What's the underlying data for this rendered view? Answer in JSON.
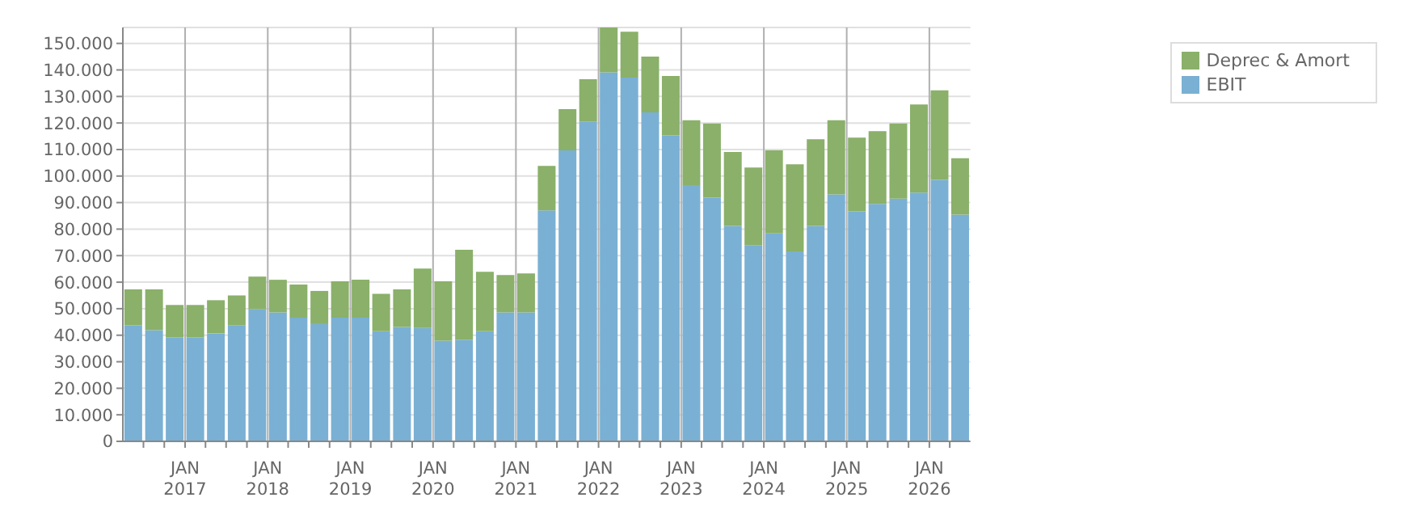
{
  "chart_data": {
    "type": "bar",
    "stacked": true,
    "x": [
      "2016-05-16",
      "2016-08-16",
      "2016-11-15",
      "2017-02-14",
      "2017-05-16",
      "2017-08-16",
      "2017-11-15",
      "2018-02-14",
      "2018-05-16",
      "2018-08-16",
      "2018-11-15",
      "2019-02-14",
      "2019-05-16",
      "2019-08-16",
      "2019-11-15",
      "2020-02-14",
      "2020-05-16",
      "2020-08-16",
      "2020-11-15",
      "2021-02-14",
      "2021-05-16",
      "2021-08-16",
      "2021-11-15",
      "2022-02-14",
      "2022-05-16",
      "2022-08-16",
      "2022-11-15",
      "2023-02-14",
      "2023-05-16",
      "2023-08-16",
      "2023-11-15",
      "2024-02-14",
      "2024-05-16",
      "2024-08-16",
      "2024-11-15",
      "2025-02-14",
      "2025-05-16",
      "2025-08-16",
      "2025-11-15",
      "2026-02-14",
      "2026-05-16"
    ],
    "series": [
      {
        "name": "EBIT",
        "color": "#7ab0d3",
        "values": [
          43700,
          41900,
          39100,
          39100,
          40700,
          43700,
          49800,
          48600,
          46600,
          44200,
          46600,
          46600,
          41500,
          43100,
          42700,
          37900,
          38300,
          41500,
          48600,
          48600,
          87100,
          109700,
          120400,
          139100,
          137100,
          124000,
          115300,
          96600,
          91900,
          81200,
          74000,
          78400,
          71600,
          81200,
          93100,
          86700,
          89500,
          91500,
          93800,
          98600,
          85500
        ]
      },
      {
        "name": "Deprec & Amort",
        "color": "#8ab06a",
        "values": [
          13600,
          15400,
          12300,
          12300,
          12500,
          11300,
          12300,
          12300,
          12500,
          12500,
          13700,
          14300,
          14100,
          14200,
          22400,
          22400,
          33900,
          22400,
          14100,
          14700,
          16700,
          15500,
          16100,
          16900,
          17300,
          21000,
          22400,
          24400,
          27900,
          27900,
          29200,
          31300,
          32800,
          32700,
          27900,
          27800,
          27400,
          28300,
          33200,
          33700,
          21200
        ]
      }
    ],
    "xlim": [
      "2016-04-01",
      "2026-07-01"
    ],
    "xticks": [
      {
        "value": "2016-07-01",
        "label": null
      },
      {
        "value": "2016-10-01",
        "label": null
      },
      {
        "value": "2017-01-01",
        "label": "JAN\n2017"
      },
      {
        "value": "2017-04-01",
        "label": null
      },
      {
        "value": "2017-07-01",
        "label": null
      },
      {
        "value": "2017-10-01",
        "label": null
      },
      {
        "value": "2018-01-01",
        "label": "JAN\n2018"
      },
      {
        "value": "2018-04-01",
        "label": null
      },
      {
        "value": "2018-07-01",
        "label": null
      },
      {
        "value": "2018-10-01",
        "label": null
      },
      {
        "value": "2019-01-01",
        "label": "JAN\n2019"
      },
      {
        "value": "2019-04-01",
        "label": null
      },
      {
        "value": "2019-07-01",
        "label": null
      },
      {
        "value": "2019-10-01",
        "label": null
      },
      {
        "value": "2020-01-01",
        "label": "JAN\n2020"
      },
      {
        "value": "2020-04-01",
        "label": null
      },
      {
        "value": "2020-07-01",
        "label": null
      },
      {
        "value": "2020-10-01",
        "label": null
      },
      {
        "value": "2021-01-01",
        "label": "JAN\n2021"
      },
      {
        "value": "2021-04-01",
        "label": null
      },
      {
        "value": "2021-07-01",
        "label": null
      },
      {
        "value": "2021-10-01",
        "label": null
      },
      {
        "value": "2022-01-01",
        "label": "JAN\n2022"
      },
      {
        "value": "2022-04-01",
        "label": null
      },
      {
        "value": "2022-07-01",
        "label": null
      },
      {
        "value": "2022-10-01",
        "label": null
      },
      {
        "value": "2023-01-01",
        "label": "JAN\n2023"
      },
      {
        "value": "2023-04-01",
        "label": null
      },
      {
        "value": "2023-07-01",
        "label": null
      },
      {
        "value": "2023-10-01",
        "label": null
      },
      {
        "value": "2024-01-01",
        "label": "JAN\n2024"
      },
      {
        "value": "2024-04-01",
        "label": null
      },
      {
        "value": "2024-07-01",
        "label": null
      },
      {
        "value": "2024-10-01",
        "label": null
      },
      {
        "value": "2025-01-01",
        "label": "JAN\n2025"
      },
      {
        "value": "2025-04-01",
        "label": null
      },
      {
        "value": "2025-07-01",
        "label": null
      },
      {
        "value": "2025-10-01",
        "label": null
      },
      {
        "value": "2026-01-01",
        "label": "JAN\n2026"
      },
      {
        "value": "2026-04-01",
        "label": null
      }
    ],
    "ylim": [
      0,
      156000
    ],
    "yticks": [
      {
        "value": 0,
        "label": "0"
      },
      {
        "value": 10000,
        "label": "10.000"
      },
      {
        "value": 20000,
        "label": "20.000"
      },
      {
        "value": 30000,
        "label": "30.000"
      },
      {
        "value": 40000,
        "label": "40.000"
      },
      {
        "value": 50000,
        "label": "50.000"
      },
      {
        "value": 60000,
        "label": "60.000"
      },
      {
        "value": 70000,
        "label": "70.000"
      },
      {
        "value": 80000,
        "label": "80.000"
      },
      {
        "value": 90000,
        "label": "90.000"
      },
      {
        "value": 100000,
        "label": "100.000"
      },
      {
        "value": 110000,
        "label": "110.000"
      },
      {
        "value": 120000,
        "label": "120.000"
      },
      {
        "value": 130000,
        "label": "130.000"
      },
      {
        "value": 140000,
        "label": "140.000"
      },
      {
        "value": 150000,
        "label": "150.000"
      }
    ],
    "grid": true,
    "legend": "top right"
  }
}
